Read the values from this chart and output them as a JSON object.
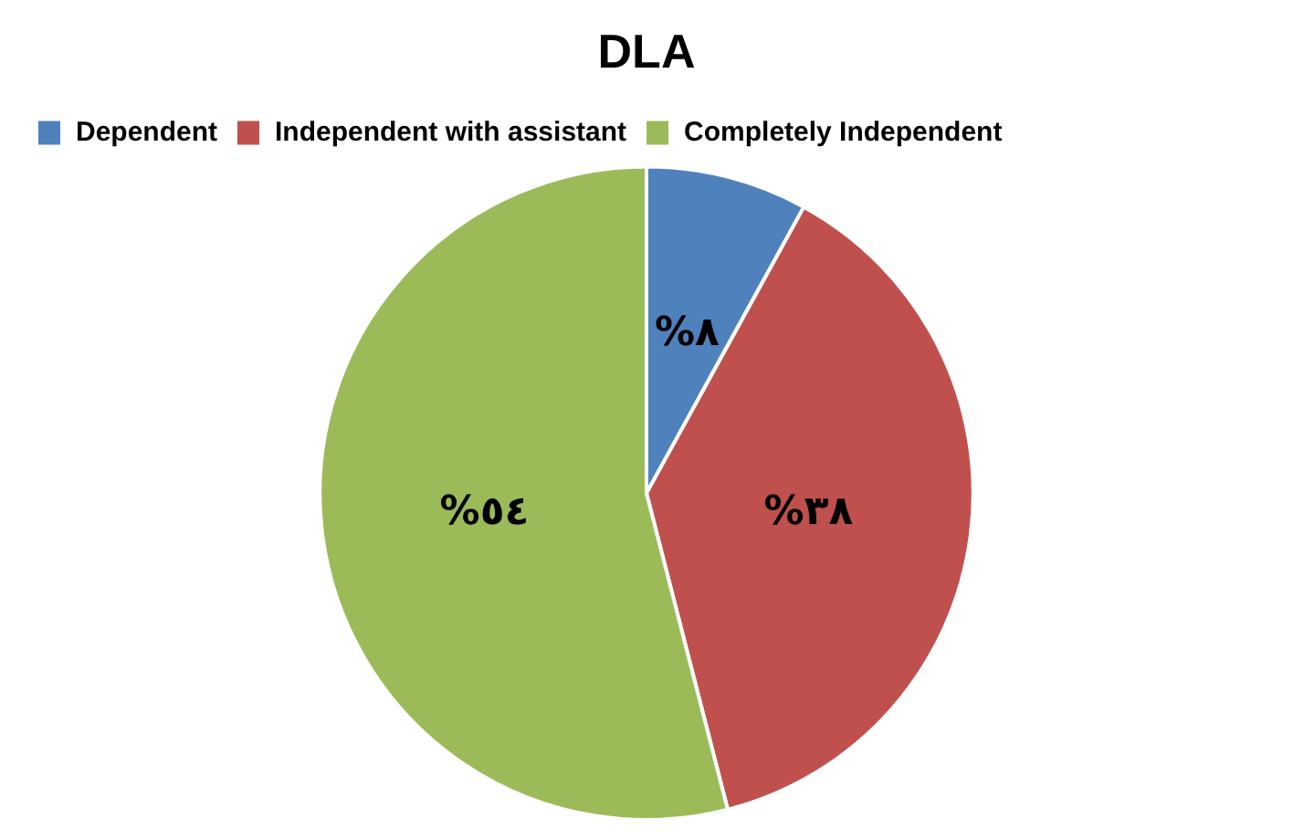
{
  "chart_data": {
    "type": "pie",
    "title": "DLA",
    "categories": [
      "Dependent",
      "Independent with assistant",
      "Completely Independent"
    ],
    "values": [
      8,
      38,
      54
    ],
    "value_labels": [
      "%٨",
      "%٣٨",
      "%٥٤"
    ],
    "colors": [
      "#4f81bd",
      "#c0504d",
      "#9bbb59"
    ],
    "legend": "top left"
  }
}
